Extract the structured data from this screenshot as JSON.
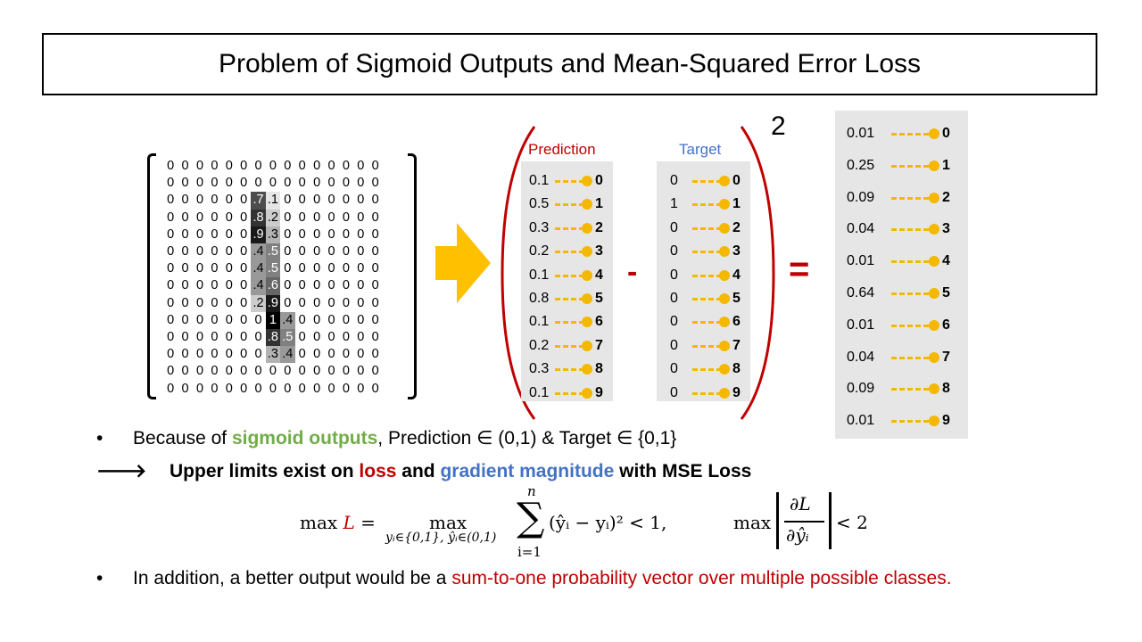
{
  "title": "Problem of Sigmoid Outputs and Mean-Squared Error Loss",
  "matrix": [
    [
      "0",
      "0",
      "0",
      "0",
      "0",
      "0",
      "0",
      "0",
      "0",
      "0",
      "0",
      "0",
      "0",
      "0",
      "0"
    ],
    [
      "0",
      "0",
      "0",
      "0",
      "0",
      "0",
      "0",
      "0",
      "0",
      "0",
      "0",
      "0",
      "0",
      "0",
      "0"
    ],
    [
      "0",
      "0",
      "0",
      "0",
      "0",
      "0",
      ".7",
      ".1",
      "0",
      "0",
      "0",
      "0",
      "0",
      "0",
      "0"
    ],
    [
      "0",
      "0",
      "0",
      "0",
      "0",
      "0",
      ".8",
      ".2",
      "0",
      "0",
      "0",
      "0",
      "0",
      "0",
      "0"
    ],
    [
      "0",
      "0",
      "0",
      "0",
      "0",
      "0",
      ".9",
      ".3",
      "0",
      "0",
      "0",
      "0",
      "0",
      "0",
      "0"
    ],
    [
      "0",
      "0",
      "0",
      "0",
      "0",
      "0",
      ".4",
      ".5",
      "0",
      "0",
      "0",
      "0",
      "0",
      "0",
      "0"
    ],
    [
      "0",
      "0",
      "0",
      "0",
      "0",
      "0",
      ".4",
      ".5",
      "0",
      "0",
      "0",
      "0",
      "0",
      "0",
      "0"
    ],
    [
      "0",
      "0",
      "0",
      "0",
      "0",
      "0",
      ".4",
      ".6",
      "0",
      "0",
      "0",
      "0",
      "0",
      "0",
      "0"
    ],
    [
      "0",
      "0",
      "0",
      "0",
      "0",
      "0",
      ".2",
      ".9",
      "0",
      "0",
      "0",
      "0",
      "0",
      "0",
      "0"
    ],
    [
      "0",
      "0",
      "0",
      "0",
      "0",
      "0",
      "0",
      "1",
      ".4",
      "0",
      "0",
      "0",
      "0",
      "0",
      "0"
    ],
    [
      "0",
      "0",
      "0",
      "0",
      "0",
      "0",
      "0",
      ".8",
      ".5",
      "0",
      "0",
      "0",
      "0",
      "0",
      "0"
    ],
    [
      "0",
      "0",
      "0",
      "0",
      "0",
      "0",
      "0",
      ".3",
      ".4",
      "0",
      "0",
      "0",
      "0",
      "0",
      "0"
    ],
    [
      "0",
      "0",
      "0",
      "0",
      "0",
      "0",
      "0",
      "0",
      "0",
      "0",
      "0",
      "0",
      "0",
      "0",
      "0"
    ],
    [
      "0",
      "0",
      "0",
      "0",
      "0",
      "0",
      "0",
      "0",
      "0",
      "0",
      "0",
      "0",
      "0",
      "0",
      "0"
    ]
  ],
  "prediction": {
    "header": "Prediction",
    "header_color": "#c00000",
    "values": [
      "0.1",
      "0.5",
      "0.3",
      "0.2",
      "0.1",
      "0.8",
      "0.1",
      "0.2",
      "0.3",
      "0.1"
    ]
  },
  "target": {
    "header": "Target",
    "header_color": "#4472c4",
    "values": [
      "0",
      "1",
      "0",
      "0",
      "0",
      "0",
      "0",
      "0",
      "0",
      "0"
    ]
  },
  "indices": [
    "0",
    "1",
    "2",
    "3",
    "4",
    "5",
    "6",
    "7",
    "8",
    "9"
  ],
  "minus_sign": "-",
  "equals_sign": "=",
  "exponent": "2",
  "result": {
    "values": [
      "0.01",
      "0.25",
      "0.09",
      "0.04",
      "0.01",
      "0.64",
      "0.01",
      "0.04",
      "0.09",
      "0.01"
    ]
  },
  "colors": {
    "accent_red": "#c00000",
    "accent_green": "#70ad47",
    "accent_blue": "#4472c4",
    "arrow_yellow": "#ffc000",
    "connector_yellow": "#f5b800",
    "panel_gray": "#e7e6e6"
  },
  "bullet1": {
    "bullet": "•",
    "pre": "Because of ",
    "highlight": "sigmoid outputs",
    "post": ", Prediction ∈ (0,1) & Target ∈ {0,1}"
  },
  "arrow_line": {
    "arrow": "🡒",
    "pre": "Upper limits exist on ",
    "loss": "loss",
    "mid": " and ",
    "gradient": "gradient magnitude",
    "post": " with MSE Loss"
  },
  "formula": {
    "max_L_prefix": "max ",
    "L": "L",
    "eq": " =",
    "max_word": "max",
    "max_sub": "yᵢ∈{0,1}, ŷᵢ∈(0,1)",
    "sum_top": "n",
    "sum_symbol": "∑",
    "sum_bottom": "i=1",
    "sum_body": "(ŷᵢ − yᵢ)² < 1,",
    "grad_max": "max",
    "grad_num": "∂L",
    "grad_den": "∂ŷᵢ",
    "grad_bound": "< 2"
  },
  "bullet2": {
    "bullet": "•",
    "pre": "In addition, a better output would be a ",
    "highlight": "sum-to-one probability vector over multiple possible classes."
  }
}
